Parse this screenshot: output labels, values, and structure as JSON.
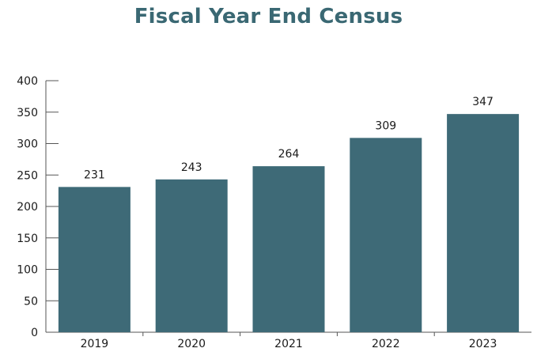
{
  "chart_data": {
    "type": "bar",
    "title": "Fiscal Year End Census",
    "xlabel": "",
    "ylabel": "",
    "categories": [
      "2019",
      "2020",
      "2021",
      "2022",
      "2023"
    ],
    "values": [
      231,
      243,
      264,
      309,
      347
    ],
    "ylim": [
      0,
      400
    ],
    "yticks": [
      0,
      50,
      100,
      150,
      200,
      250,
      300,
      350,
      400
    ],
    "bar_color": "#3e6a77",
    "grid": false,
    "legend": "none",
    "data_labels": true
  }
}
